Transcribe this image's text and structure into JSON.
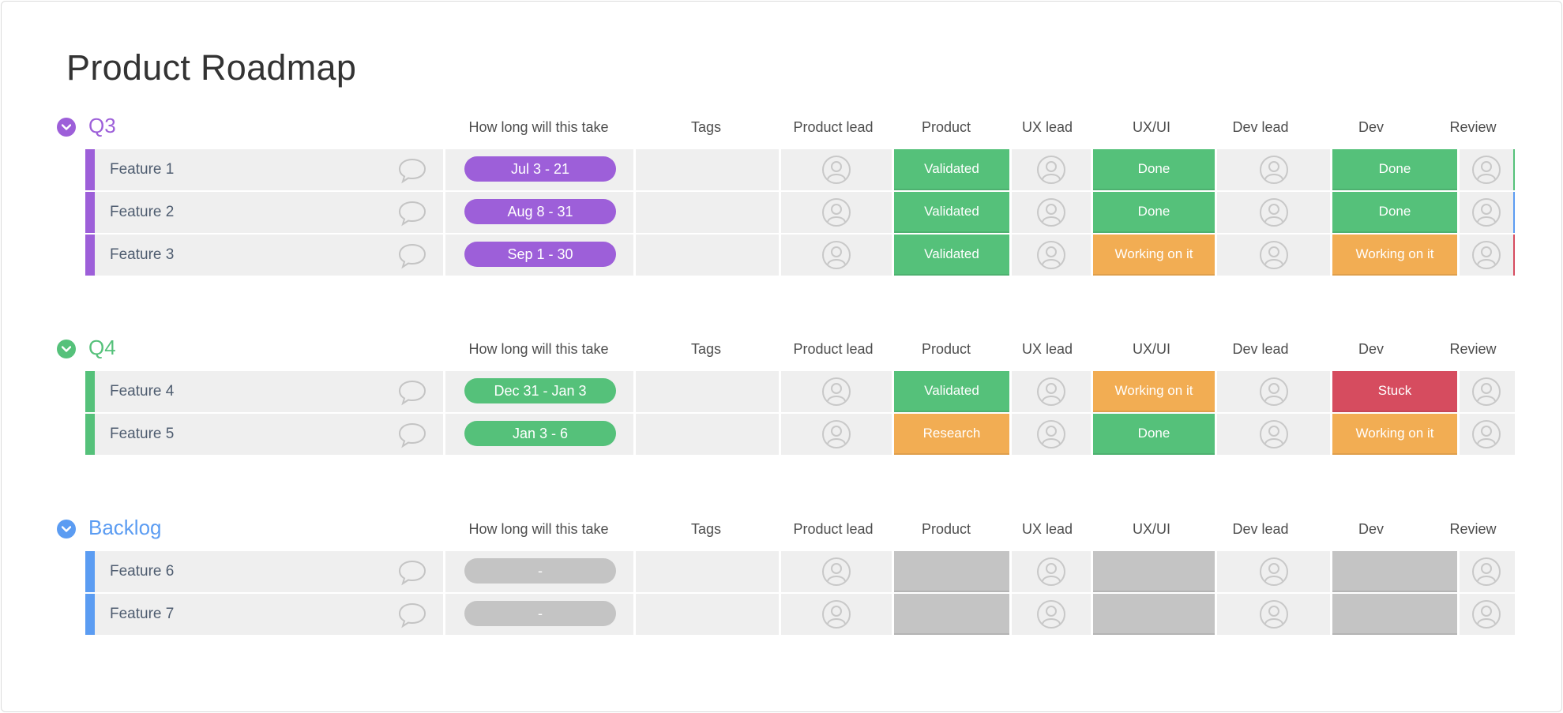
{
  "page": {
    "title": "Product Roadmap"
  },
  "columns": [
    "How long will this take",
    "Tags",
    "Product lead",
    "Product",
    "UX lead",
    "UX/UI",
    "Dev lead",
    "Dev",
    "Review"
  ],
  "colors": {
    "purple": "#9d5fd9",
    "green": "#55c17a",
    "blue": "#5b9cf2",
    "orange": "#f2ad53",
    "red": "#d64c5f",
    "gray": "#c4c4c4"
  },
  "groups": [
    {
      "name": "Q3",
      "color": "#9d5fd9",
      "rows": [
        {
          "name": "Feature 1",
          "timeline": "Jul 3 - 21",
          "product": "Validated",
          "uxui": "Done",
          "dev": "Done"
        },
        {
          "name": "Feature 2",
          "timeline": "Aug 8 - 31",
          "product": "Validated",
          "uxui": "Done",
          "dev": "Done"
        },
        {
          "name": "Feature 3",
          "timeline": "Sep 1 - 30",
          "product": "Validated",
          "uxui": "Working on it",
          "dev": "Working on it"
        }
      ]
    },
    {
      "name": "Q4",
      "color": "#55c17a",
      "rows": [
        {
          "name": "Feature 4",
          "timeline": "Dec 31 - Jan 3",
          "product": "Validated",
          "uxui": "Working on it",
          "dev": "Stuck"
        },
        {
          "name": "Feature 5",
          "timeline": "Jan 3 - 6",
          "product": "Research",
          "uxui": "Done",
          "dev": "Working on it"
        }
      ]
    },
    {
      "name": "Backlog",
      "color": "#5b9cf2",
      "rows": [
        {
          "name": "Feature 6",
          "timeline": "-",
          "product": "",
          "uxui": "",
          "dev": ""
        },
        {
          "name": "Feature 7",
          "timeline": "-",
          "product": "",
          "uxui": "",
          "dev": ""
        }
      ]
    }
  ],
  "icons": {
    "toggle": "chevron-down-icon",
    "chat": "chat-bubble-icon",
    "avatar": "person-avatar-icon"
  }
}
